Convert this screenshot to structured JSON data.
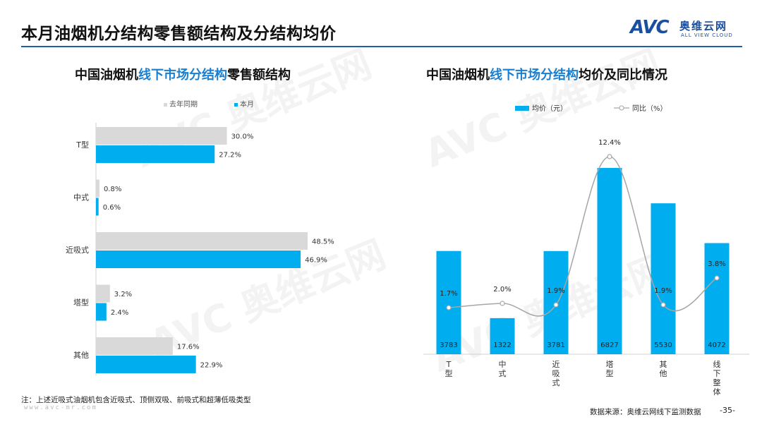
{
  "header": {
    "title": "本月油烟机分结构零售额结构及分结构均价",
    "logo_mark": "AVC",
    "logo_cn": "奥维云网",
    "logo_en": "ALL VIEW CLOUD"
  },
  "left_panel": {
    "title_pre": "中国油烟机",
    "title_hl": "线下市场分结构",
    "title_post": "零售额结构"
  },
  "right_panel": {
    "title_pre": "中国油烟机",
    "title_hl": "线下市场分结构",
    "title_post": "均价及同比情况"
  },
  "watermark": {
    "brand": "AVC 奥维云网",
    "sub": "ALL VIEW CLOUD"
  },
  "footer": {
    "note": "注：上述近吸式油烟机包含近吸式、顶侧双吸、前吸式和超薄低吸类型",
    "site": "www.avc-mr.com",
    "source": "数据来源：奥维云网线下监测数据",
    "page": "-35-"
  },
  "colors": {
    "accent_blue": "#00aeef",
    "last_year_gray": "#d9d9d9",
    "title_blue": "#1a7fd0",
    "rule_blue": "#1f5fa8",
    "line_gray": "#a6a6a6"
  },
  "chart_data": [
    {
      "type": "bar",
      "orientation": "horizontal",
      "categories": [
        "T型",
        "中式",
        "近吸式",
        "塔型",
        "其他"
      ],
      "series": [
        {
          "name": "去年同期",
          "values": [
            30.0,
            0.8,
            48.5,
            3.2,
            17.6
          ],
          "labels": [
            "30.0%",
            "0.8%",
            "48.5%",
            "3.2%",
            "17.6%"
          ],
          "color": "#d9d9d9"
        },
        {
          "name": "本月",
          "values": [
            27.2,
            0.6,
            46.9,
            2.4,
            22.9
          ],
          "labels": [
            "27.2%",
            "0.6%",
            "46.9%",
            "2.4%",
            "22.9%"
          ],
          "color": "#00aeef"
        }
      ],
      "legend_position": "top",
      "grid": false
    },
    {
      "type": "bar",
      "categories": [
        "T型",
        "中式",
        "近吸式",
        "塔型",
        "其他",
        "线下整体"
      ],
      "series": [
        {
          "name": "均价（元）",
          "kind": "bar",
          "values": [
            3783,
            1322,
            3781,
            6827,
            5530,
            4072
          ],
          "labels": [
            "3783",
            "1322",
            "3781",
            "6827",
            "5530",
            "4072"
          ],
          "color": "#00aeef"
        },
        {
          "name": "同比（%）",
          "kind": "line",
          "values": [
            1.7,
            2.0,
            1.9,
            12.4,
            1.9,
            3.8
          ],
          "labels": [
            "1.7%",
            "2.0%",
            "1.9%",
            "12.4%",
            "1.9%",
            "3.8%"
          ],
          "color": "#a6a6a6"
        }
      ],
      "legend_position": "top",
      "grid": false
    }
  ]
}
